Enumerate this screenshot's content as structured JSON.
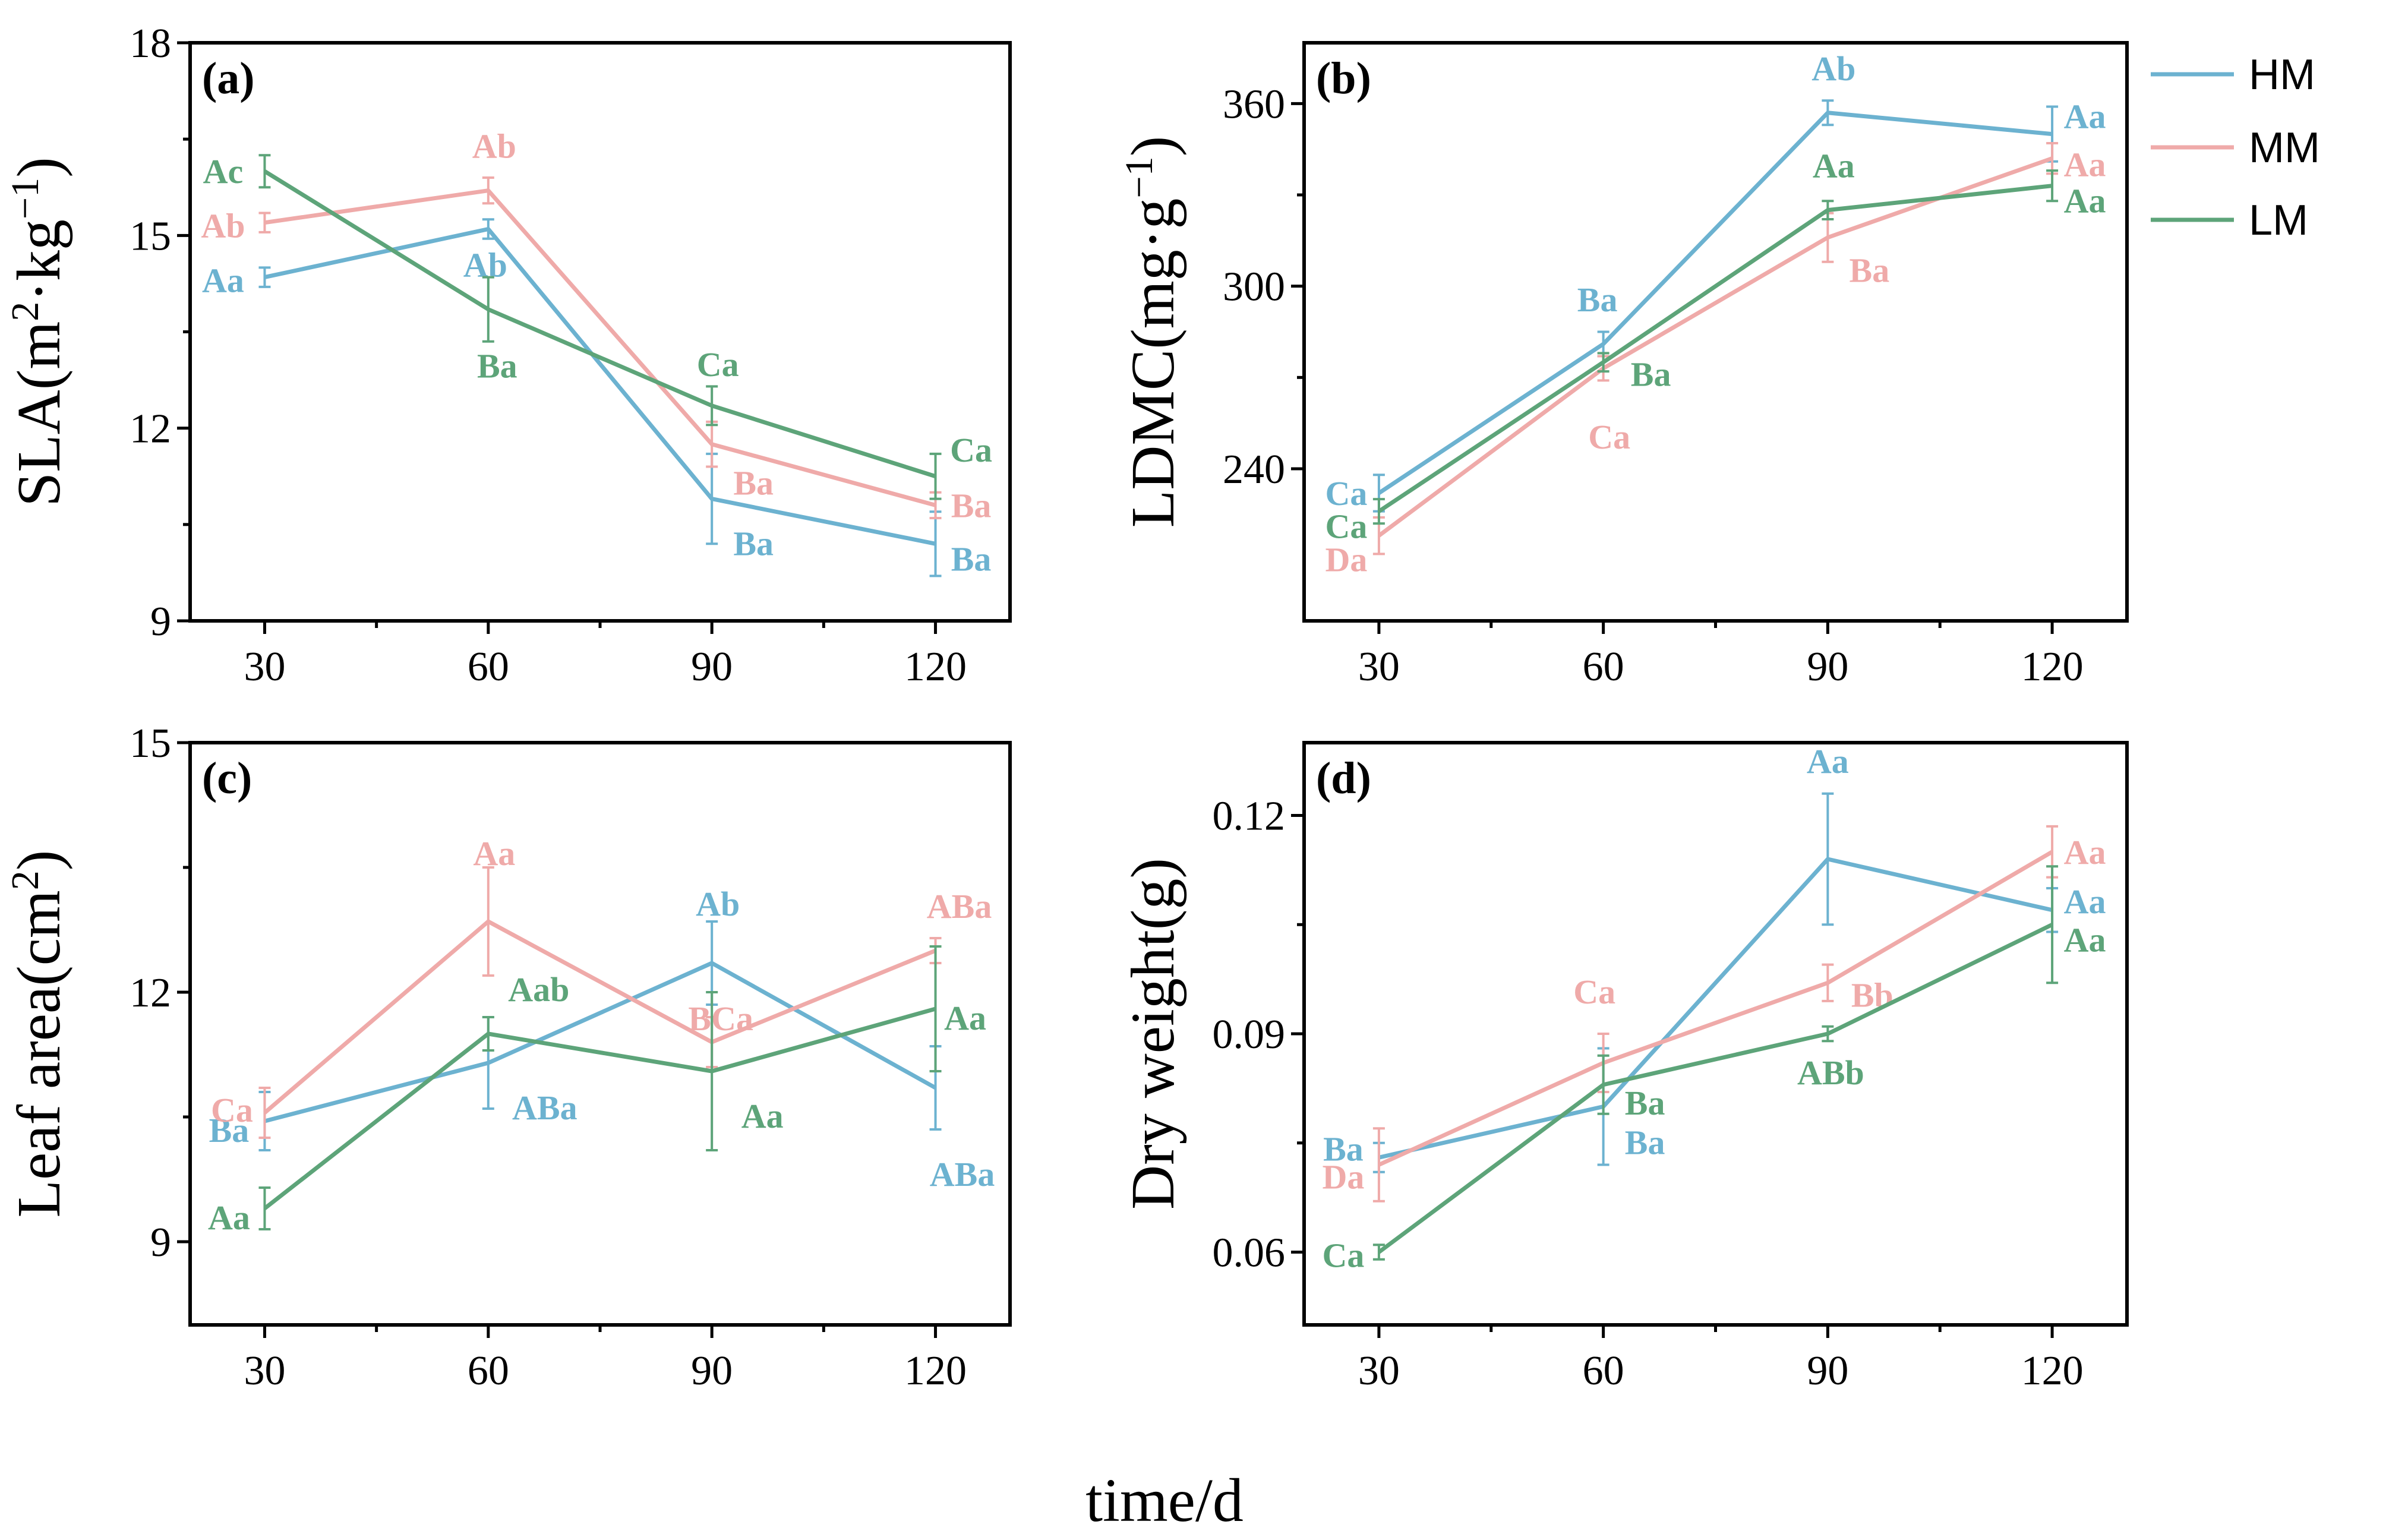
{
  "figure": {
    "xlabel": "time/d",
    "legend": [
      {
        "name": "HM",
        "color": "#6cb2d0"
      },
      {
        "name": "MM",
        "color": "#efaaa9"
      },
      {
        "name": "LM",
        "color": "#5da479"
      }
    ]
  },
  "chart_data": [
    {
      "type": "line",
      "panel": "(a)",
      "ylabel": "SLA(m²·kg⁻¹)",
      "x": [
        30,
        60,
        90,
        120
      ],
      "xlim": [
        20,
        130
      ],
      "ylim": [
        9,
        18
      ],
      "yticks": [
        9,
        12,
        15,
        18
      ],
      "series": [
        {
          "name": "HM",
          "color": "#6cb2d0",
          "values": [
            14.35,
            15.1,
            10.9,
            10.2
          ],
          "errors": [
            0.15,
            0.15,
            0.7,
            0.5
          ],
          "labels": [
            "Aa",
            "Ab",
            "Ba",
            "Ba"
          ]
        },
        {
          "name": "MM",
          "color": "#efaaa9",
          "values": [
            15.2,
            15.7,
            11.75,
            10.8
          ],
          "errors": [
            0.15,
            0.2,
            0.35,
            0.2
          ],
          "labels": [
            "Ab",
            "Ab",
            "Ba",
            "Ba"
          ]
        },
        {
          "name": "LM",
          "color": "#5da479",
          "values": [
            16.0,
            13.85,
            12.35,
            11.25
          ],
          "errors": [
            0.25,
            0.5,
            0.3,
            0.35
          ],
          "labels": [
            "Ac",
            "Ba",
            "Ca",
            "Ca"
          ]
        }
      ]
    },
    {
      "type": "line",
      "panel": "(b)",
      "ylabel": "LDMC(mg·g⁻¹)",
      "x": [
        30,
        60,
        90,
        120
      ],
      "xlim": [
        20,
        130
      ],
      "ylim": [
        190,
        380
      ],
      "yticks": [
        240,
        300,
        360
      ],
      "series": [
        {
          "name": "HM",
          "color": "#6cb2d0",
          "values": [
            232,
            281,
            357,
            350
          ],
          "errors": [
            6,
            4,
            4,
            9
          ],
          "labels": [
            "Ca",
            "Ba",
            "Ab",
            "Aa"
          ]
        },
        {
          "name": "MM",
          "color": "#efaaa9",
          "values": [
            218,
            273,
            316,
            342
          ],
          "errors": [
            6,
            4,
            8,
            5
          ],
          "labels": [
            "Da",
            "Ca",
            "Ba",
            "Aa"
          ]
        },
        {
          "name": "LM",
          "color": "#5da479",
          "values": [
            226,
            275,
            325,
            333
          ],
          "errors": [
            4,
            3,
            3,
            5
          ],
          "labels": [
            "Ca",
            "Ba",
            "Aa",
            "Aa"
          ]
        }
      ]
    },
    {
      "type": "line",
      "panel": "(c)",
      "ylabel": "Leaf area(cm²)",
      "x": [
        30,
        60,
        90,
        120
      ],
      "xlim": [
        20,
        130
      ],
      "ylim": [
        8.0,
        15.0
      ],
      "yticks": [
        9,
        12,
        15
      ],
      "series": [
        {
          "name": "HM",
          "color": "#6cb2d0",
          "values": [
            10.45,
            11.15,
            12.35,
            10.85
          ],
          "errors": [
            0.35,
            0.55,
            0.5,
            0.5
          ],
          "labels": [
            "Ba",
            "ABa",
            "Ab",
            "ABa"
          ]
        },
        {
          "name": "MM",
          "color": "#efaaa9",
          "values": [
            10.55,
            12.85,
            11.4,
            12.5
          ],
          "errors": [
            0.3,
            0.65,
            0.3,
            0.15
          ],
          "labels": [
            "Ca",
            "Aa",
            "BCa",
            "ABa"
          ]
        },
        {
          "name": "LM",
          "color": "#5da479",
          "values": [
            9.4,
            11.5,
            11.05,
            11.8
          ],
          "errors": [
            0.25,
            0.2,
            0.95,
            0.75
          ],
          "labels": [
            "Aa",
            "Aab",
            "Aa",
            "Aa"
          ]
        }
      ]
    },
    {
      "type": "line",
      "panel": "(d)",
      "ylabel": "Dry weight(g)",
      "x": [
        30,
        60,
        90,
        120
      ],
      "xlim": [
        20,
        130
      ],
      "ylim": [
        0.05,
        0.13
      ],
      "yticks": [
        0.06,
        0.09,
        0.12
      ],
      "ytick_labels": [
        "0.06",
        "0.09",
        "0.12"
      ],
      "series": [
        {
          "name": "HM",
          "color": "#6cb2d0",
          "values": [
            0.073,
            0.08,
            0.114,
            0.107
          ],
          "errors": [
            0.002,
            0.008,
            0.009,
            0.003
          ],
          "labels": [
            "Ba",
            "Ba",
            "Aa",
            "Aa"
          ]
        },
        {
          "name": "MM",
          "color": "#efaaa9",
          "values": [
            0.072,
            0.086,
            0.097,
            0.115
          ],
          "errors": [
            0.005,
            0.004,
            0.0025,
            0.0035
          ],
          "labels": [
            "Da",
            "Ca",
            "Bb",
            "Aa"
          ]
        },
        {
          "name": "LM",
          "color": "#5da479",
          "values": [
            0.06,
            0.083,
            0.09,
            0.105
          ],
          "errors": [
            0.001,
            0.004,
            0.001,
            0.008
          ],
          "labels": [
            "Ca",
            "Ba",
            "ABb",
            "Aa"
          ]
        }
      ]
    }
  ]
}
